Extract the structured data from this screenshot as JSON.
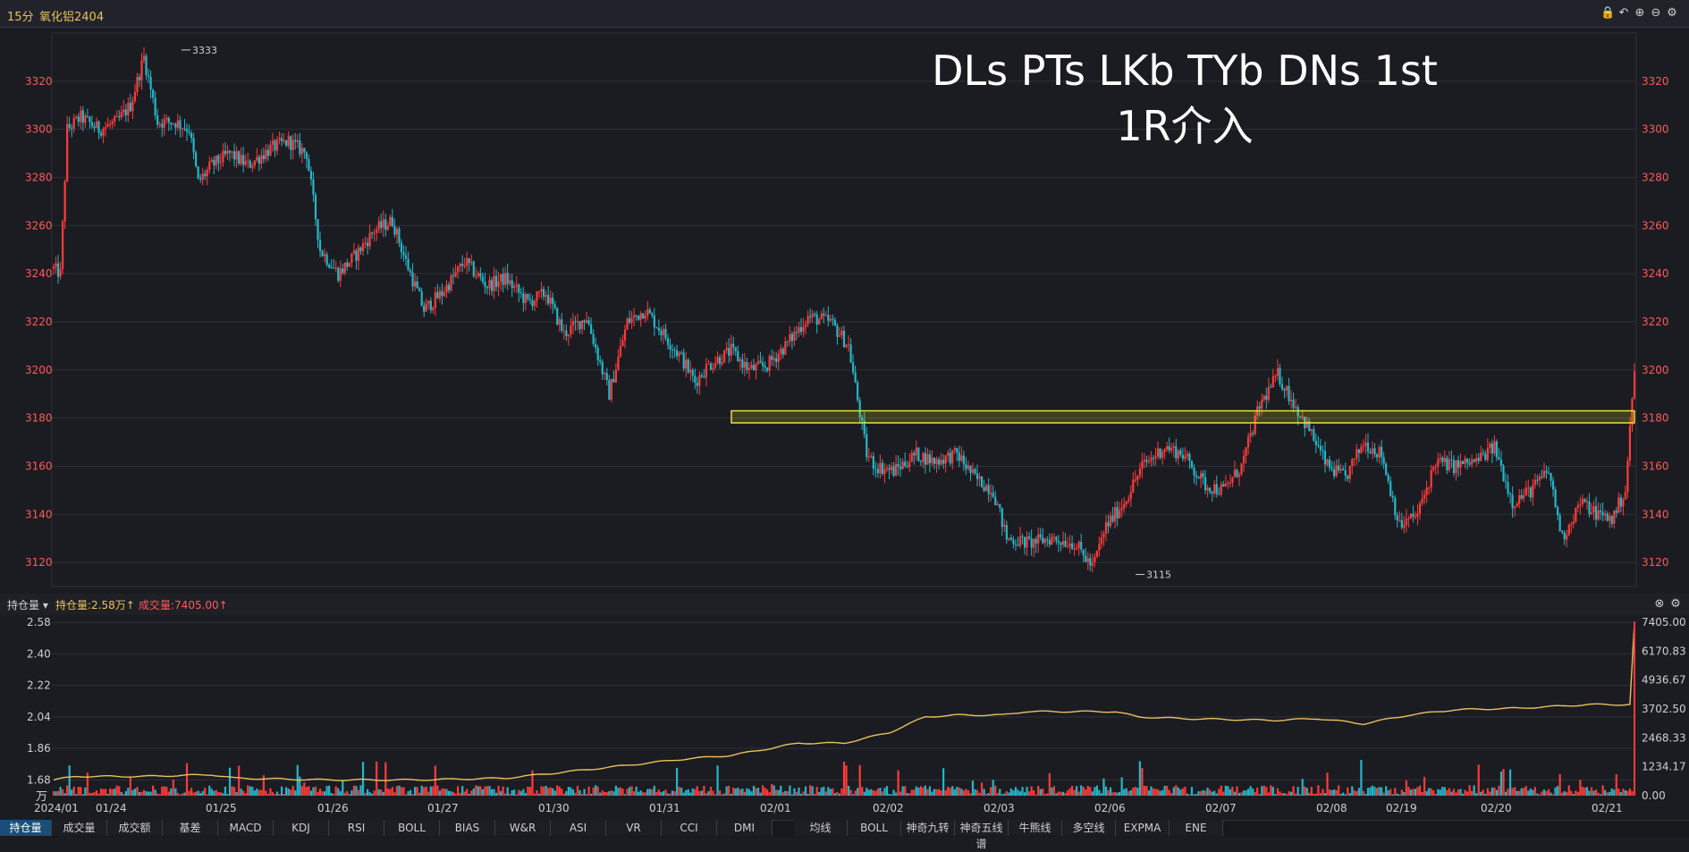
{
  "header": {
    "period": "15分",
    "symbol": "氧化铝2404",
    "icons": [
      "lock-icon",
      "undo-icon",
      "zoom-in-icon",
      "zoom-out-icon",
      "gear-icon"
    ]
  },
  "annotation": {
    "line1": "DLs PTs LKb TYb DNs 1st",
    "line2": "1R介入"
  },
  "colors": {
    "background": "#1b1c21",
    "up_candle": "#ff3b3b",
    "down_candle": "#25b6c8",
    "oi_line": "#e7c15e",
    "zone_stroke": "#e6e233",
    "axis_text_red": "#ff5a5a",
    "grid": "#2e3038"
  },
  "price_chart": {
    "y_ticks": [
      "3320",
      "3300",
      "3280",
      "3260",
      "3240",
      "3220",
      "3200",
      "3180",
      "3160",
      "3140",
      "3120"
    ],
    "y_min": 3110,
    "y_max": 3340,
    "high_label": "3333",
    "low_label": "3115",
    "zone": {
      "low": 3178,
      "high": 3183
    }
  },
  "oi_panel": {
    "dropdown_label": "持仓量",
    "oi_legend": "持仓量:2.58万",
    "vol_legend": "成交量:7405.00",
    "left_ticks": [
      "2.58",
      "2.40",
      "2.22",
      "2.04",
      "1.86",
      "1.68"
    ],
    "right_ticks": [
      "7405.00",
      "6170.83",
      "4936.67",
      "3702.50",
      "2468.33",
      "1234.17",
      "0.00"
    ],
    "unit": "万"
  },
  "x_axis": {
    "dates": [
      "2024/01",
      "01/24",
      "01/25",
      "01/26",
      "01/27",
      "01/30",
      "01/31",
      "02/01",
      "02/02",
      "02/03",
      "02/06",
      "02/07",
      "02/08",
      "02/19",
      "02/20",
      "02/21"
    ]
  },
  "bottom_tabs": [
    "持仓量",
    "成交量",
    "成交额",
    "基差",
    "MACD",
    "KDJ",
    "RSI",
    "BOLL",
    "BIAS",
    "W&R",
    "ASI",
    "VR",
    "CCI",
    "DMI"
  ],
  "bottom_tabs_right": [
    "均线",
    "BOLL",
    "神奇九转",
    "神奇五线谱",
    "牛熊线",
    "多空线",
    "EXPMA",
    "ENE"
  ],
  "chart_data": {
    "type": "candlestick",
    "title": "",
    "ylabel": "",
    "ylim": [
      3110,
      3340
    ],
    "x_categories": [
      "2024/01",
      "01/24",
      "01/25",
      "01/26",
      "01/27",
      "01/30",
      "01/31",
      "02/01",
      "02/02",
      "02/03",
      "02/06",
      "02/07",
      "02/08",
      "02/19",
      "02/20",
      "02/21"
    ],
    "close_path": [
      [
        0,
        3242
      ],
      [
        3,
        3240
      ],
      [
        6,
        3300
      ],
      [
        12,
        3305
      ],
      [
        20,
        3300
      ],
      [
        28,
        3303
      ],
      [
        34,
        3310
      ],
      [
        40,
        3330
      ],
      [
        46,
        3303
      ],
      [
        54,
        3303
      ],
      [
        60,
        3300
      ],
      [
        64,
        3278
      ],
      [
        70,
        3285
      ],
      [
        78,
        3290
      ],
      [
        86,
        3285
      ],
      [
        96,
        3292
      ],
      [
        104,
        3295
      ],
      [
        112,
        3290
      ],
      [
        118,
        3250
      ],
      [
        126,
        3240
      ],
      [
        134,
        3248
      ],
      [
        142,
        3258
      ],
      [
        150,
        3262
      ],
      [
        156,
        3245
      ],
      [
        164,
        3225
      ],
      [
        172,
        3232
      ],
      [
        182,
        3245
      ],
      [
        192,
        3235
      ],
      [
        200,
        3238
      ],
      [
        210,
        3228
      ],
      [
        218,
        3232
      ],
      [
        226,
        3215
      ],
      [
        236,
        3222
      ],
      [
        246,
        3190
      ],
      [
        254,
        3220
      ],
      [
        262,
        3225
      ],
      [
        270,
        3215
      ],
      [
        278,
        3205
      ],
      [
        284,
        3195
      ],
      [
        290,
        3202
      ],
      [
        300,
        3208
      ],
      [
        308,
        3200
      ],
      [
        316,
        3202
      ],
      [
        324,
        3210
      ],
      [
        334,
        3222
      ],
      [
        344,
        3220
      ],
      [
        352,
        3210
      ],
      [
        360,
        3165
      ],
      [
        364,
        3160
      ],
      [
        372,
        3158
      ],
      [
        382,
        3165
      ],
      [
        390,
        3162
      ],
      [
        400,
        3165
      ],
      [
        408,
        3155
      ],
      [
        416,
        3150
      ],
      [
        422,
        3130
      ],
      [
        432,
        3128
      ],
      [
        442,
        3130
      ],
      [
        452,
        3128
      ],
      [
        460,
        3118
      ],
      [
        466,
        3135
      ],
      [
        474,
        3145
      ],
      [
        482,
        3160
      ],
      [
        492,
        3168
      ],
      [
        500,
        3165
      ],
      [
        510,
        3152
      ],
      [
        518,
        3150
      ],
      [
        526,
        3160
      ],
      [
        534,
        3185
      ],
      [
        542,
        3198
      ],
      [
        548,
        3188
      ],
      [
        556,
        3175
      ],
      [
        564,
        3160
      ],
      [
        572,
        3155
      ],
      [
        580,
        3170
      ],
      [
        588,
        3165
      ],
      [
        596,
        3135
      ],
      [
        604,
        3140
      ],
      [
        612,
        3162
      ],
      [
        620,
        3160
      ],
      [
        630,
        3162
      ],
      [
        638,
        3168
      ],
      [
        646,
        3145
      ],
      [
        654,
        3150
      ],
      [
        662,
        3158
      ],
      [
        668,
        3130
      ],
      [
        676,
        3145
      ],
      [
        684,
        3140
      ],
      [
        690,
        3138
      ],
      [
        696,
        3150
      ],
      [
        700,
        3200
      ]
    ],
    "open_interest_wan": [
      [
        0,
        1.68
      ],
      [
        10,
        1.7
      ],
      [
        40,
        1.7
      ],
      [
        70,
        1.71
      ],
      [
        80,
        1.69
      ],
      [
        120,
        1.68
      ],
      [
        160,
        1.68
      ],
      [
        200,
        1.69
      ],
      [
        230,
        1.73
      ],
      [
        280,
        1.8
      ],
      [
        300,
        1.82
      ],
      [
        330,
        1.89
      ],
      [
        350,
        1.89
      ],
      [
        370,
        1.95
      ],
      [
        386,
        2.04
      ],
      [
        400,
        2.05
      ],
      [
        420,
        2.05
      ],
      [
        430,
        2.07
      ],
      [
        470,
        2.07
      ],
      [
        480,
        2.04
      ],
      [
        500,
        2.03
      ],
      [
        540,
        2.02
      ],
      [
        560,
        2.03
      ],
      [
        580,
        2.0
      ],
      [
        600,
        2.05
      ],
      [
        620,
        2.08
      ],
      [
        650,
        2.09
      ],
      [
        680,
        2.11
      ],
      [
        698,
        2.11
      ],
      [
        700,
        2.58
      ]
    ],
    "volume_last": 7405.0
  }
}
